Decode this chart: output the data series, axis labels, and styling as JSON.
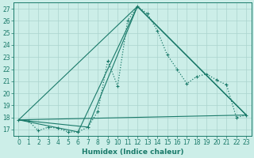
{
  "xlabel": "Humidex (Indice chaleur)",
  "bg_color": "#cceee8",
  "line_color": "#1a7a6a",
  "grid_color": "#aad4ce",
  "xlim": [
    -0.5,
    23.5
  ],
  "ylim": [
    16.5,
    27.5
  ],
  "xticks": [
    0,
    1,
    2,
    3,
    4,
    5,
    6,
    7,
    8,
    9,
    10,
    11,
    12,
    13,
    14,
    15,
    16,
    17,
    18,
    19,
    20,
    21,
    22,
    23
  ],
  "yticks": [
    17,
    18,
    19,
    20,
    21,
    22,
    23,
    24,
    25,
    26,
    27
  ],
  "main_series": {
    "x": [
      0,
      1,
      2,
      3,
      4,
      5,
      6,
      7,
      8,
      9,
      10,
      11,
      12,
      13,
      14,
      15,
      16,
      17,
      18,
      19,
      20,
      21,
      22,
      23
    ],
    "y": [
      17.8,
      17.7,
      16.9,
      17.2,
      17.1,
      16.8,
      16.8,
      17.2,
      18.5,
      22.7,
      20.6,
      26.0,
      27.2,
      26.6,
      25.2,
      23.2,
      22.0,
      20.8,
      21.4,
      21.6,
      21.1,
      20.7,
      18.0,
      18.2
    ]
  },
  "straight_lines": [
    {
      "x": [
        0,
        23
      ],
      "y": [
        17.8,
        18.2
      ]
    },
    {
      "x": [
        0,
        12,
        23
      ],
      "y": [
        17.8,
        27.2,
        18.2
      ]
    },
    {
      "x": [
        0,
        7,
        12,
        23
      ],
      "y": [
        17.8,
        17.2,
        27.2,
        18.2
      ]
    },
    {
      "x": [
        0,
        6,
        12,
        23
      ],
      "y": [
        17.8,
        16.8,
        27.2,
        18.2
      ]
    }
  ],
  "tick_fontsize": 5.5,
  "label_fontsize": 6.5
}
